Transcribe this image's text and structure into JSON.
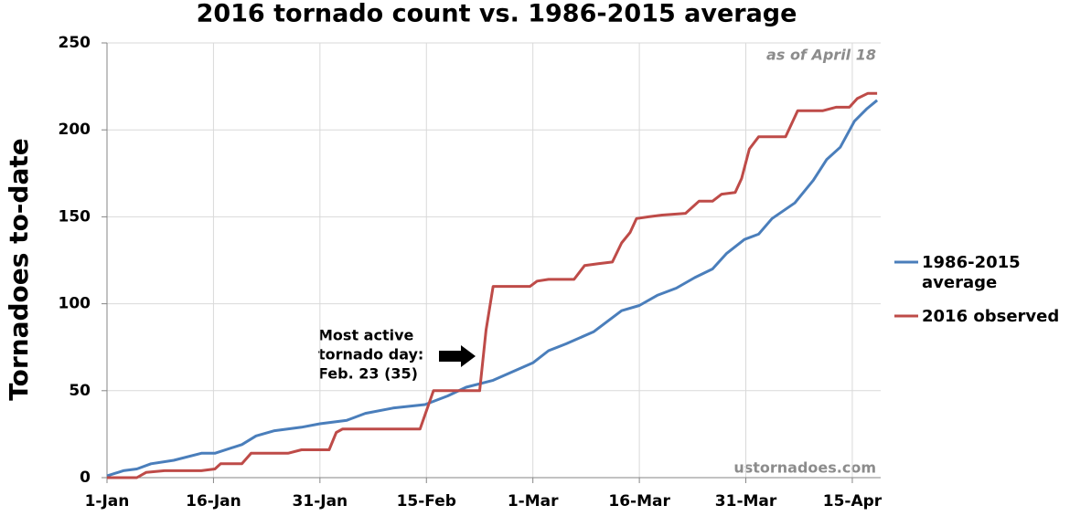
{
  "chart_data": {
    "type": "line",
    "title": "2016 tornado count vs. 1986-2015 average",
    "y_label": "Tornadoes to-date",
    "annotations": [
      "as of April 18",
      "ustornadoes.com"
    ],
    "callout": [
      "Most active",
      "tornado day:",
      "Feb. 23 (35)"
    ],
    "xlim": [
      0,
      109
    ],
    "ylim": [
      0,
      250
    ],
    "xticks": [
      {
        "value": 0,
        "label": "1-Jan"
      },
      {
        "value": 15,
        "label": "16-Jan"
      },
      {
        "value": 30,
        "label": "31-Jan"
      },
      {
        "value": 45,
        "label": "15-Feb"
      },
      {
        "value": 60,
        "label": "1-Mar"
      },
      {
        "value": 75,
        "label": "16-Mar"
      },
      {
        "value": 90,
        "label": "31-Mar"
      },
      {
        "value": 105,
        "label": "15-Apr"
      }
    ],
    "yticks": [
      0,
      50,
      100,
      150,
      200,
      250
    ],
    "grid": true,
    "series": [
      {
        "name": "1986-2015 average",
        "color": "#4a7ebb",
        "x": [
          0,
          2.3,
          4.2,
          6.2,
          9.4,
          13.3,
          15.2,
          19,
          21,
          23.6,
          27.4,
          30,
          33.8,
          36.4,
          40.3,
          44.8,
          48,
          50.6,
          54.4,
          60,
          62.2,
          64.7,
          68.6,
          72.5,
          75,
          77.6,
          80.2,
          82.8,
          85.3,
          87.3,
          89.8,
          91.8,
          93.7,
          96.9,
          99.5,
          101.4,
          103.3,
          105.3,
          107,
          108.5
        ],
        "values": [
          1,
          4,
          5,
          8,
          10,
          14,
          14,
          19,
          24,
          27,
          29,
          31,
          33,
          37,
          40,
          42,
          47,
          52,
          56,
          66,
          73,
          77,
          84,
          96,
          99,
          105,
          109,
          115,
          120,
          129,
          137,
          140,
          149,
          158,
          171,
          183,
          190,
          205,
          212,
          217
        ]
      },
      {
        "name": "2016 observed",
        "color": "#be4b48",
        "x": [
          0,
          4.2,
          5.5,
          8.1,
          13.3,
          15.2,
          16,
          19,
          20.3,
          25.5,
          27.4,
          31.3,
          32.3,
          33.2,
          44.1,
          46,
          52.5,
          53.4,
          54.4,
          59.6,
          60.6,
          62.2,
          65.8,
          67.3,
          69.2,
          71.2,
          72.5,
          73.7,
          74.6,
          76.3,
          78.2,
          81.5,
          83.4,
          85.3,
          86.6,
          88.5,
          89.4,
          90.5,
          91.8,
          95.6,
          97.3,
          100.8,
          102.7,
          104.6,
          105.7,
          107.2,
          108.5
        ],
        "values": [
          0,
          0,
          3,
          4,
          4,
          5,
          8,
          8,
          14,
          14,
          16,
          16,
          26,
          28,
          28,
          50,
          50,
          85,
          110,
          110,
          113,
          114,
          114,
          122,
          123,
          124,
          135,
          141,
          149,
          150,
          151,
          152,
          159,
          159,
          163,
          164,
          172,
          189,
          196,
          196,
          211,
          211,
          213,
          213,
          218,
          221,
          221
        ]
      }
    ]
  }
}
